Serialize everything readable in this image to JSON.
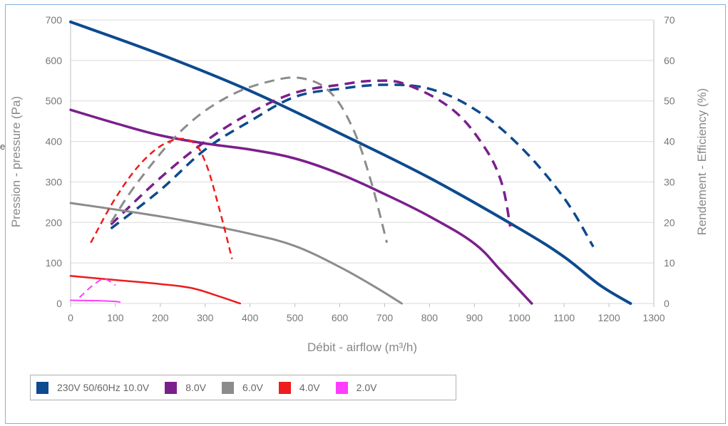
{
  "chart_data": {
    "type": "line",
    "xlabel": "Débit - airflow (m³/h)",
    "ylabel_left": "Pression - pressure (Pa)",
    "ylabel_right": "Rendement - Efficiency (%)",
    "xlim": [
      0,
      1300
    ],
    "ylim_left": [
      0,
      700
    ],
    "ylim_right": [
      0,
      70
    ],
    "x_ticks": [
      "0",
      "100",
      "200",
      "300",
      "400",
      "500",
      "600",
      "700",
      "800",
      "900",
      "1000",
      "1100",
      "1200",
      "1300"
    ],
    "y_left_ticks": [
      "0",
      "100",
      "200",
      "300",
      "400",
      "500",
      "600",
      "700"
    ],
    "y_right_ticks": [
      "0",
      "10",
      "20",
      "30",
      "40",
      "50",
      "60",
      "70"
    ],
    "grid": "horizontal",
    "legend": "bottom-left",
    "series": [
      {
        "name": "230V 50/60Hz 10.0V",
        "color": "#0d4a8f",
        "pressure": [
          [
            0,
            695
          ],
          [
            200,
            615
          ],
          [
            400,
            525
          ],
          [
            600,
            420
          ],
          [
            800,
            310
          ],
          [
            1000,
            185
          ],
          [
            1100,
            115
          ],
          [
            1180,
            45
          ],
          [
            1248,
            0
          ]
        ],
        "efficiency": [
          [
            90,
            18.5
          ],
          [
            200,
            28
          ],
          [
            300,
            38
          ],
          [
            400,
            45
          ],
          [
            500,
            51
          ],
          [
            600,
            53
          ],
          [
            700,
            54
          ],
          [
            800,
            53
          ],
          [
            900,
            48
          ],
          [
            1000,
            39
          ],
          [
            1100,
            26
          ],
          [
            1165,
            14
          ]
        ]
      },
      {
        "name": "8.0V",
        "color": "#7b1f8c",
        "pressure": [
          [
            0,
            478
          ],
          [
            100,
            445
          ],
          [
            200,
            415
          ],
          [
            300,
            395
          ],
          [
            400,
            380
          ],
          [
            500,
            358
          ],
          [
            600,
            320
          ],
          [
            700,
            270
          ],
          [
            800,
            215
          ],
          [
            900,
            148
          ],
          [
            960,
            80
          ],
          [
            1028,
            0
          ]
        ],
        "efficiency": [
          [
            90,
            19.5
          ],
          [
            200,
            31
          ],
          [
            300,
            40
          ],
          [
            400,
            47
          ],
          [
            500,
            52
          ],
          [
            600,
            54
          ],
          [
            680,
            55
          ],
          [
            750,
            54
          ],
          [
            850,
            48
          ],
          [
            920,
            39
          ],
          [
            960,
            30
          ],
          [
            980,
            19
          ]
        ]
      },
      {
        "name": "6.0V",
        "color": "#8c8c8c",
        "pressure": [
          [
            0,
            248
          ],
          [
            100,
            232
          ],
          [
            200,
            215
          ],
          [
            300,
            195
          ],
          [
            400,
            172
          ],
          [
            500,
            142
          ],
          [
            600,
            90
          ],
          [
            680,
            40
          ],
          [
            738,
            0
          ]
        ],
        "efficiency": [
          [
            90,
            20
          ],
          [
            150,
            30
          ],
          [
            250,
            43
          ],
          [
            350,
            51
          ],
          [
            450,
            55
          ],
          [
            520,
            55.5
          ],
          [
            580,
            52
          ],
          [
            630,
            43
          ],
          [
            670,
            30
          ],
          [
            705,
            15
          ]
        ]
      },
      {
        "name": "4.0V",
        "color": "#ee1c1c",
        "pressure": [
          [
            0,
            68
          ],
          [
            100,
            58
          ],
          [
            200,
            48
          ],
          [
            270,
            38
          ],
          [
            330,
            18
          ],
          [
            378,
            0
          ]
        ],
        "efficiency": [
          [
            45,
            15
          ],
          [
            100,
            26
          ],
          [
            160,
            35
          ],
          [
            220,
            40
          ],
          [
            270,
            40
          ],
          [
            300,
            35
          ],
          [
            330,
            24
          ],
          [
            360,
            11
          ]
        ]
      },
      {
        "name": "2.0V",
        "color": "#ff3dff",
        "pressure": [
          [
            0,
            8
          ],
          [
            50,
            7
          ],
          [
            100,
            5
          ],
          [
            110,
            3
          ]
        ],
        "efficiency": [
          [
            20,
            1.5
          ],
          [
            50,
            4.5
          ],
          [
            75,
            6
          ],
          [
            100,
            4.5
          ]
        ]
      }
    ]
  },
  "stray_label": "e"
}
